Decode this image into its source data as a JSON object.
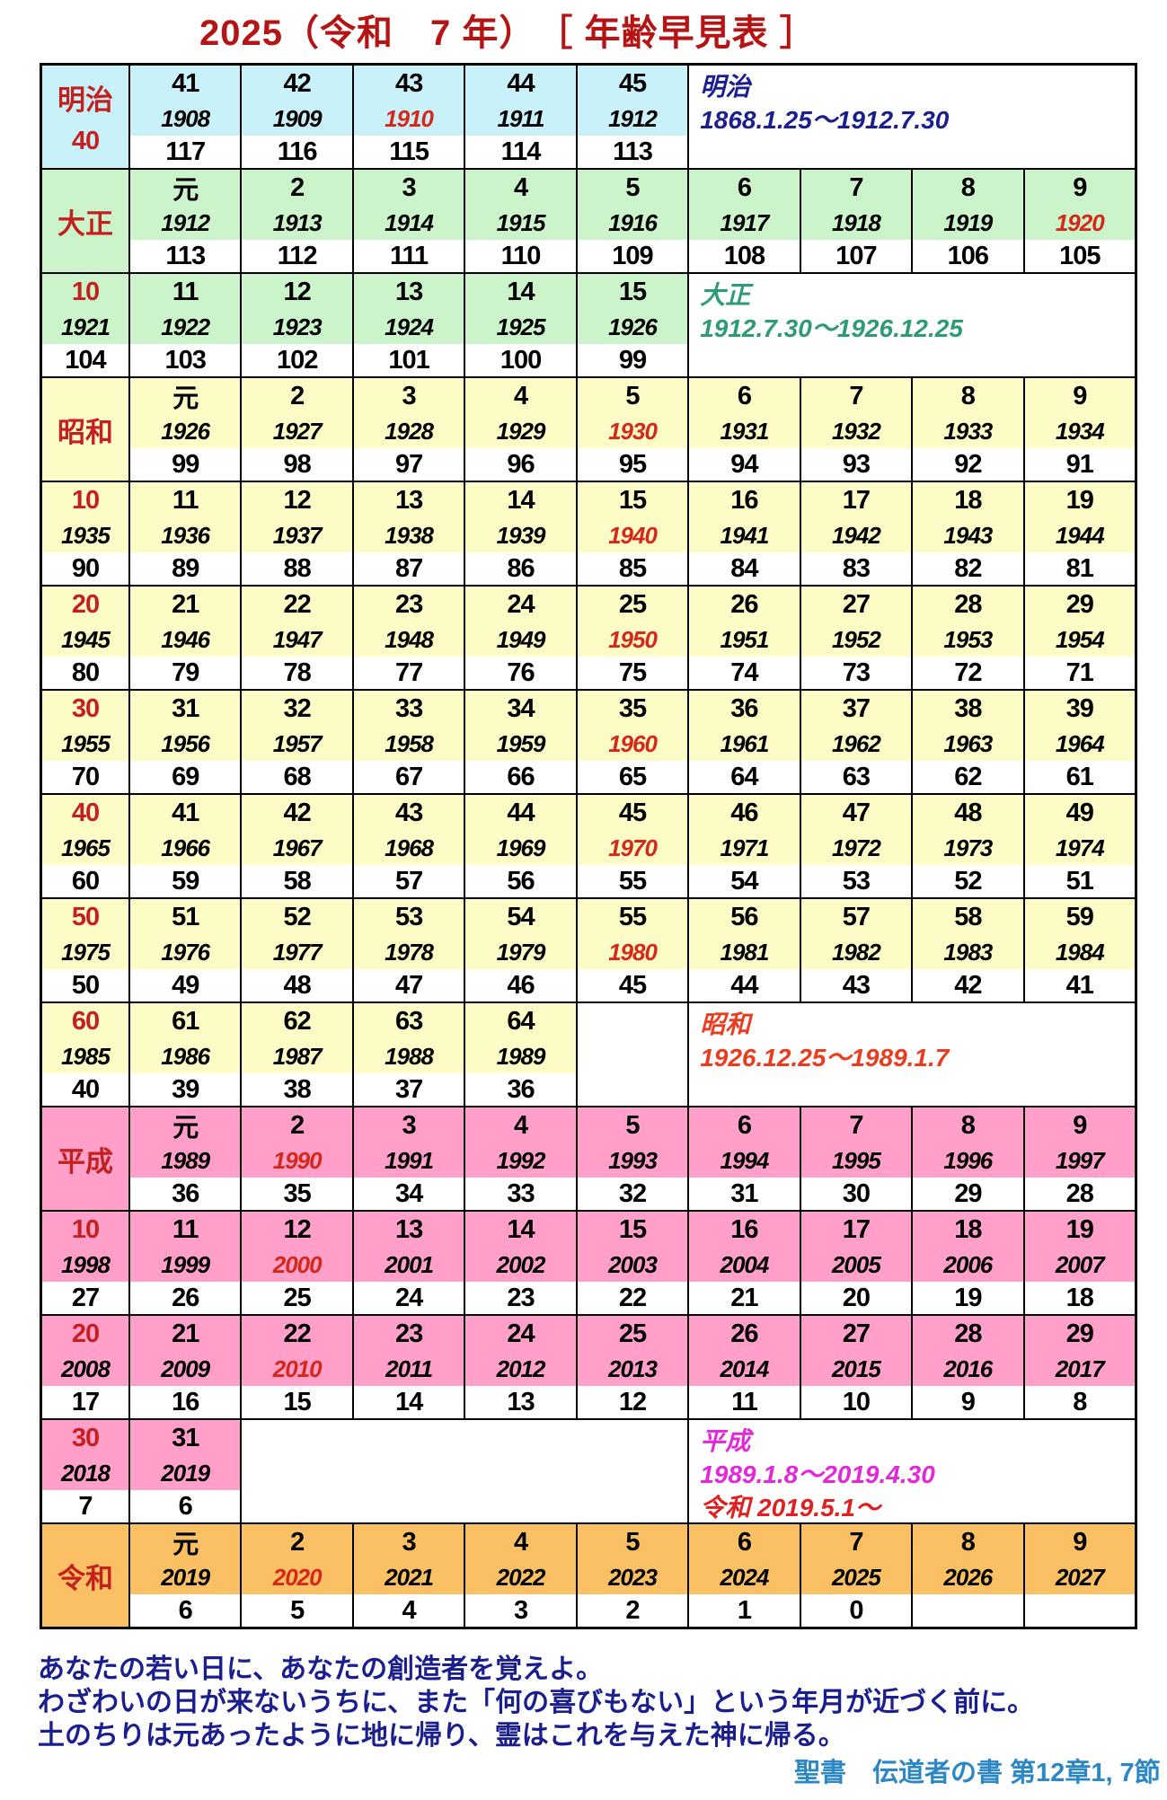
{
  "title": "2025（令和　7 年）　［ 年齢早見表 ］",
  "colors": {
    "title": "#b51414",
    "era_label": "#c32020",
    "red_year": "#d3281a",
    "era_bg": {
      "meiji": "#c9f1fa",
      "taisho": "#ccf4cb",
      "showa": "#fdfcc6",
      "heisei": "#ff9fca",
      "reiwa": "#fac063"
    },
    "info": {
      "meiji": "#1b1f8d",
      "taisho": "#2f9b72",
      "showa": "#ea3d20",
      "heisei": "#e328d8",
      "reiwa": "#df2020"
    },
    "quote": "#1b1f8d",
    "attribution": "#2c87c5"
  },
  "table": {
    "groups": [
      {
        "bg": "meiji",
        "label": {
          "era": "明治",
          "sub": "40"
        },
        "cells": [
          {
            "n": "41",
            "y": "1908",
            "a": "117"
          },
          {
            "n": "42",
            "y": "1909",
            "a": "116"
          },
          {
            "n": "43",
            "y": "1910",
            "a": "115",
            "ry": true
          },
          {
            "n": "44",
            "y": "1911",
            "a": "114"
          },
          {
            "n": "45",
            "y": "1912",
            "a": "113"
          },
          {
            "info": true,
            "span": 4,
            "lines": [
              [
                "明治",
                "meiji"
              ],
              [
                "1868.1.25～1912.7.30",
                "meiji"
              ]
            ]
          }
        ]
      },
      {
        "bg": "taisho",
        "label": {
          "era": "大正"
        },
        "cells": [
          {
            "n": "元",
            "y": "1912",
            "a": "113"
          },
          {
            "n": "2",
            "y": "1913",
            "a": "112"
          },
          {
            "n": "3",
            "y": "1914",
            "a": "111"
          },
          {
            "n": "4",
            "y": "1915",
            "a": "110"
          },
          {
            "n": "5",
            "y": "1916",
            "a": "109"
          },
          {
            "n": "6",
            "y": "1917",
            "a": "108"
          },
          {
            "n": "7",
            "y": "1918",
            "a": "107"
          },
          {
            "n": "8",
            "y": "1919",
            "a": "106"
          },
          {
            "n": "9",
            "y": "1920",
            "a": "105",
            "ry": true
          }
        ]
      },
      {
        "bg": "taisho",
        "label": {
          "dec": [
            "10",
            "1921",
            "104"
          ]
        },
        "cells": [
          {
            "n": "11",
            "y": "1922",
            "a": "103"
          },
          {
            "n": "12",
            "y": "1923",
            "a": "102"
          },
          {
            "n": "13",
            "y": "1924",
            "a": "101"
          },
          {
            "n": "14",
            "y": "1925",
            "a": "100"
          },
          {
            "n": "15",
            "y": "1926",
            "a": "99"
          },
          {
            "info": true,
            "span": 4,
            "lines": [
              [
                "大正",
                "taisho"
              ],
              [
                "1912.7.30～1926.12.25",
                "taisho"
              ]
            ]
          }
        ]
      },
      {
        "bg": "showa",
        "label": {
          "era": "昭和"
        },
        "cells": [
          {
            "n": "元",
            "y": "1926",
            "a": "99"
          },
          {
            "n": "2",
            "y": "1927",
            "a": "98"
          },
          {
            "n": "3",
            "y": "1928",
            "a": "97"
          },
          {
            "n": "4",
            "y": "1929",
            "a": "96"
          },
          {
            "n": "5",
            "y": "1930",
            "a": "95",
            "ry": true
          },
          {
            "n": "6",
            "y": "1931",
            "a": "94"
          },
          {
            "n": "7",
            "y": "1932",
            "a": "93"
          },
          {
            "n": "8",
            "y": "1933",
            "a": "92"
          },
          {
            "n": "9",
            "y": "1934",
            "a": "91"
          }
        ]
      },
      {
        "bg": "showa",
        "label": {
          "dec": [
            "10",
            "1935",
            "90"
          ]
        },
        "cells": [
          {
            "n": "11",
            "y": "1936",
            "a": "89"
          },
          {
            "n": "12",
            "y": "1937",
            "a": "88"
          },
          {
            "n": "13",
            "y": "1938",
            "a": "87"
          },
          {
            "n": "14",
            "y": "1939",
            "a": "86"
          },
          {
            "n": "15",
            "y": "1940",
            "a": "85",
            "ry": true
          },
          {
            "n": "16",
            "y": "1941",
            "a": "84"
          },
          {
            "n": "17",
            "y": "1942",
            "a": "83"
          },
          {
            "n": "18",
            "y": "1943",
            "a": "82"
          },
          {
            "n": "19",
            "y": "1944",
            "a": "81"
          }
        ]
      },
      {
        "bg": "showa",
        "label": {
          "dec": [
            "20",
            "1945",
            "80"
          ]
        },
        "cells": [
          {
            "n": "21",
            "y": "1946",
            "a": "79"
          },
          {
            "n": "22",
            "y": "1947",
            "a": "78"
          },
          {
            "n": "23",
            "y": "1948",
            "a": "77"
          },
          {
            "n": "24",
            "y": "1949",
            "a": "76"
          },
          {
            "n": "25",
            "y": "1950",
            "a": "75",
            "ry": true
          },
          {
            "n": "26",
            "y": "1951",
            "a": "74"
          },
          {
            "n": "27",
            "y": "1952",
            "a": "73"
          },
          {
            "n": "28",
            "y": "1953",
            "a": "72"
          },
          {
            "n": "29",
            "y": "1954",
            "a": "71"
          }
        ]
      },
      {
        "bg": "showa",
        "label": {
          "dec": [
            "30",
            "1955",
            "70"
          ]
        },
        "cells": [
          {
            "n": "31",
            "y": "1956",
            "a": "69"
          },
          {
            "n": "32",
            "y": "1957",
            "a": "68"
          },
          {
            "n": "33",
            "y": "1958",
            "a": "67"
          },
          {
            "n": "34",
            "y": "1959",
            "a": "66"
          },
          {
            "n": "35",
            "y": "1960",
            "a": "65",
            "ry": true
          },
          {
            "n": "36",
            "y": "1961",
            "a": "64"
          },
          {
            "n": "37",
            "y": "1962",
            "a": "63"
          },
          {
            "n": "38",
            "y": "1963",
            "a": "62"
          },
          {
            "n": "39",
            "y": "1964",
            "a": "61"
          }
        ]
      },
      {
        "bg": "showa",
        "label": {
          "dec": [
            "40",
            "1965",
            "60"
          ]
        },
        "cells": [
          {
            "n": "41",
            "y": "1966",
            "a": "59"
          },
          {
            "n": "42",
            "y": "1967",
            "a": "58"
          },
          {
            "n": "43",
            "y": "1968",
            "a": "57"
          },
          {
            "n": "44",
            "y": "1969",
            "a": "56"
          },
          {
            "n": "45",
            "y": "1970",
            "a": "55",
            "ry": true
          },
          {
            "n": "46",
            "y": "1971",
            "a": "54"
          },
          {
            "n": "47",
            "y": "1972",
            "a": "53"
          },
          {
            "n": "48",
            "y": "1973",
            "a": "52"
          },
          {
            "n": "49",
            "y": "1974",
            "a": "51"
          }
        ]
      },
      {
        "bg": "showa",
        "label": {
          "dec": [
            "50",
            "1975",
            "50"
          ]
        },
        "cells": [
          {
            "n": "51",
            "y": "1976",
            "a": "49"
          },
          {
            "n": "52",
            "y": "1977",
            "a": "48"
          },
          {
            "n": "53",
            "y": "1978",
            "a": "47"
          },
          {
            "n": "54",
            "y": "1979",
            "a": "46"
          },
          {
            "n": "55",
            "y": "1980",
            "a": "45",
            "ry": true
          },
          {
            "n": "56",
            "y": "1981",
            "a": "44"
          },
          {
            "n": "57",
            "y": "1982",
            "a": "43"
          },
          {
            "n": "58",
            "y": "1983",
            "a": "42"
          },
          {
            "n": "59",
            "y": "1984",
            "a": "41"
          }
        ]
      },
      {
        "bg": "showa",
        "label": {
          "dec": [
            "60",
            "1985",
            "40"
          ]
        },
        "cells": [
          {
            "n": "61",
            "y": "1986",
            "a": "39"
          },
          {
            "n": "62",
            "y": "1987",
            "a": "38"
          },
          {
            "n": "63",
            "y": "1988",
            "a": "37"
          },
          {
            "n": "64",
            "y": "1989",
            "a": "36"
          },
          {
            "empty": true,
            "span": 1
          },
          {
            "info": true,
            "span": 4,
            "lines": [
              [
                "昭和",
                "showa"
              ],
              [
                "1926.12.25～1989.1.7",
                "showa"
              ]
            ]
          }
        ]
      },
      {
        "bg": "heisei",
        "label": {
          "era": "平成"
        },
        "cells": [
          {
            "n": "元",
            "y": "1989",
            "a": "36"
          },
          {
            "n": "2",
            "y": "1990",
            "a": "35",
            "ry": true
          },
          {
            "n": "3",
            "y": "1991",
            "a": "34"
          },
          {
            "n": "4",
            "y": "1992",
            "a": "33"
          },
          {
            "n": "5",
            "y": "1993",
            "a": "32"
          },
          {
            "n": "6",
            "y": "1994",
            "a": "31"
          },
          {
            "n": "7",
            "y": "1995",
            "a": "30"
          },
          {
            "n": "8",
            "y": "1996",
            "a": "29"
          },
          {
            "n": "9",
            "y": "1997",
            "a": "28"
          }
        ]
      },
      {
        "bg": "heisei",
        "label": {
          "dec": [
            "10",
            "1998",
            "27"
          ]
        },
        "cells": [
          {
            "n": "11",
            "y": "1999",
            "a": "26"
          },
          {
            "n": "12",
            "y": "2000",
            "a": "25",
            "ry": true
          },
          {
            "n": "13",
            "y": "2001",
            "a": "24"
          },
          {
            "n": "14",
            "y": "2002",
            "a": "23"
          },
          {
            "n": "15",
            "y": "2003",
            "a": "22"
          },
          {
            "n": "16",
            "y": "2004",
            "a": "21"
          },
          {
            "n": "17",
            "y": "2005",
            "a": "20"
          },
          {
            "n": "18",
            "y": "2006",
            "a": "19"
          },
          {
            "n": "19",
            "y": "2007",
            "a": "18"
          }
        ]
      },
      {
        "bg": "heisei",
        "label": {
          "dec": [
            "20",
            "2008",
            "17"
          ]
        },
        "cells": [
          {
            "n": "21",
            "y": "2009",
            "a": "16"
          },
          {
            "n": "22",
            "y": "2010",
            "a": "15",
            "ry": true
          },
          {
            "n": "23",
            "y": "2011",
            "a": "14"
          },
          {
            "n": "24",
            "y": "2012",
            "a": "13"
          },
          {
            "n": "25",
            "y": "2013",
            "a": "12"
          },
          {
            "n": "26",
            "y": "2014",
            "a": "11"
          },
          {
            "n": "27",
            "y": "2015",
            "a": "10"
          },
          {
            "n": "28",
            "y": "2016",
            "a": "9"
          },
          {
            "n": "29",
            "y": "2017",
            "a": "8"
          }
        ]
      },
      {
        "bg": "heisei",
        "label": {
          "dec": [
            "30",
            "2018",
            "7"
          ]
        },
        "cells": [
          {
            "n": "31",
            "y": "2019",
            "a": "6"
          },
          {
            "empty": true,
            "span": 4
          },
          {
            "info": true,
            "span": 4,
            "lines": [
              [
                "平成",
                "heisei"
              ],
              [
                "1989.1.8～2019.4.30",
                "heisei"
              ],
              [
                "令和 2019.5.1～",
                "reiwa"
              ]
            ]
          }
        ]
      },
      {
        "bg": "reiwa",
        "label": {
          "era": "令和"
        },
        "cells": [
          {
            "n": "元",
            "y": "2019",
            "a": "6"
          },
          {
            "n": "2",
            "y": "2020",
            "a": "5",
            "ry": true
          },
          {
            "n": "3",
            "y": "2021",
            "a": "4"
          },
          {
            "n": "4",
            "y": "2022",
            "a": "3"
          },
          {
            "n": "5",
            "y": "2023",
            "a": "2"
          },
          {
            "n": "6",
            "y": "2024",
            "a": "1"
          },
          {
            "n": "7",
            "y": "2025",
            "a": "0"
          },
          {
            "n": "8",
            "y": "2026",
            "a": ""
          },
          {
            "n": "9",
            "y": "2027",
            "a": ""
          }
        ]
      }
    ]
  },
  "footer": {
    "quote_lines": [
      "あなたの若い日に、あなたの創造者を覚えよ。",
      "わざわいの日が来ないうちに、また「何の喜びもない」という年月が近づく前に。",
      "土のちりは元あったように地に帰り、霊はこれを与えた神に帰る。"
    ],
    "attribution": "聖書　伝道者の書 第12章1, 7節"
  }
}
